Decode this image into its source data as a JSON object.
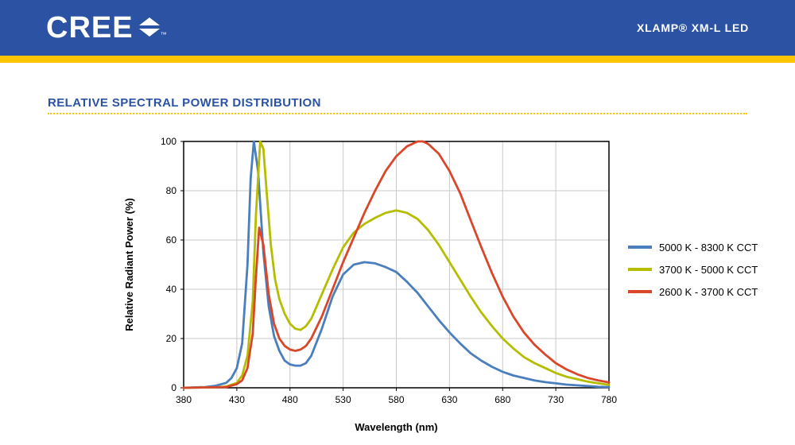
{
  "header": {
    "brand": "CREE",
    "brand_trademark": "™",
    "product": "XLAMP® XM-L LED",
    "bg_color": "#2b52a3",
    "accent_color": "#fdc500",
    "text_color": "#ffffff"
  },
  "section": {
    "title": "RELATIVE SPECTRAL POWER DISTRIBUTION",
    "title_color": "#2b52a3",
    "rule_color": "#fdc500"
  },
  "chart_data": {
    "type": "line",
    "title": "Relative Spectral Power Distribution",
    "xlabel": "Wavelength (nm)",
    "ylabel": "Relative Radiant Power (%)",
    "xlim": [
      380,
      780
    ],
    "ylim": [
      0,
      100
    ],
    "xticks": [
      380,
      430,
      480,
      530,
      580,
      630,
      680,
      730,
      780
    ],
    "yticks": [
      0,
      20,
      40,
      60,
      80,
      100
    ],
    "grid": true,
    "legend_position": "right",
    "series": [
      {
        "name": "5000 K - 8300 K CCT",
        "color": "#4a7ebd",
        "x": [
          380,
          400,
          410,
          420,
          425,
          430,
          435,
          440,
          443,
          446,
          450,
          455,
          460,
          465,
          470,
          475,
          480,
          485,
          490,
          495,
          500,
          510,
          520,
          530,
          540,
          550,
          560,
          570,
          580,
          590,
          600,
          610,
          620,
          630,
          640,
          650,
          660,
          670,
          680,
          690,
          700,
          710,
          720,
          730,
          740,
          750,
          760,
          770,
          780
        ],
        "y": [
          0,
          0.3,
          0.8,
          2,
          4,
          8,
          18,
          50,
          85,
          100,
          88,
          55,
          33,
          21,
          15,
          11,
          9.5,
          9,
          9,
          10,
          13,
          24,
          37,
          46,
          50,
          51,
          50.5,
          49,
          47,
          43,
          38.5,
          33,
          27.5,
          22.5,
          18,
          14,
          11,
          8.5,
          6.5,
          5,
          4,
          3,
          2.3,
          1.8,
          1.3,
          1,
          0.7,
          0.4,
          0.3
        ]
      },
      {
        "name": "3700 K - 5000 K CCT",
        "color": "#b5bd00",
        "x": [
          380,
          410,
          420,
          430,
          435,
          440,
          445,
          448,
          452,
          455,
          458,
          462,
          466,
          470,
          475,
          480,
          485,
          490,
          495,
          500,
          510,
          520,
          530,
          540,
          550,
          560,
          570,
          580,
          590,
          600,
          610,
          620,
          630,
          640,
          650,
          660,
          670,
          680,
          690,
          700,
          710,
          720,
          730,
          740,
          750,
          760,
          770,
          780
        ],
        "y": [
          0,
          0.2,
          0.5,
          2,
          5,
          13,
          35,
          70,
          100,
          97,
          80,
          58,
          44,
          36,
          30,
          26,
          24,
          23.5,
          25,
          28,
          38,
          48,
          57,
          63,
          66.5,
          69,
          71,
          72,
          71,
          68.5,
          64,
          58,
          51,
          44,
          37,
          30.5,
          25,
          20,
          16,
          12.5,
          10,
          8,
          6,
          4.5,
          3.5,
          2.5,
          1.8,
          1.2
        ]
      },
      {
        "name": "2600 K - 3700 K CCT",
        "color": "#d9472b",
        "x": [
          380,
          420,
          430,
          435,
          440,
          445,
          448,
          451,
          455,
          460,
          465,
          470,
          475,
          480,
          485,
          490,
          495,
          500,
          510,
          520,
          530,
          540,
          550,
          560,
          570,
          580,
          590,
          600,
          605,
          610,
          620,
          630,
          640,
          650,
          660,
          670,
          680,
          690,
          700,
          710,
          720,
          730,
          740,
          750,
          760,
          770,
          780
        ],
        "y": [
          0,
          0.3,
          1.5,
          3,
          8,
          22,
          45,
          65,
          58,
          38,
          26,
          20,
          17,
          15.5,
          15,
          15.5,
          17,
          20,
          29,
          40,
          51,
          61,
          71,
          80,
          88,
          94,
          98,
          100,
          100,
          99,
          95,
          88,
          79,
          68,
          57,
          46.5,
          37,
          29,
          22.5,
          17.5,
          13.5,
          10,
          7.5,
          5.5,
          4,
          3,
          2.2
        ]
      }
    ]
  }
}
